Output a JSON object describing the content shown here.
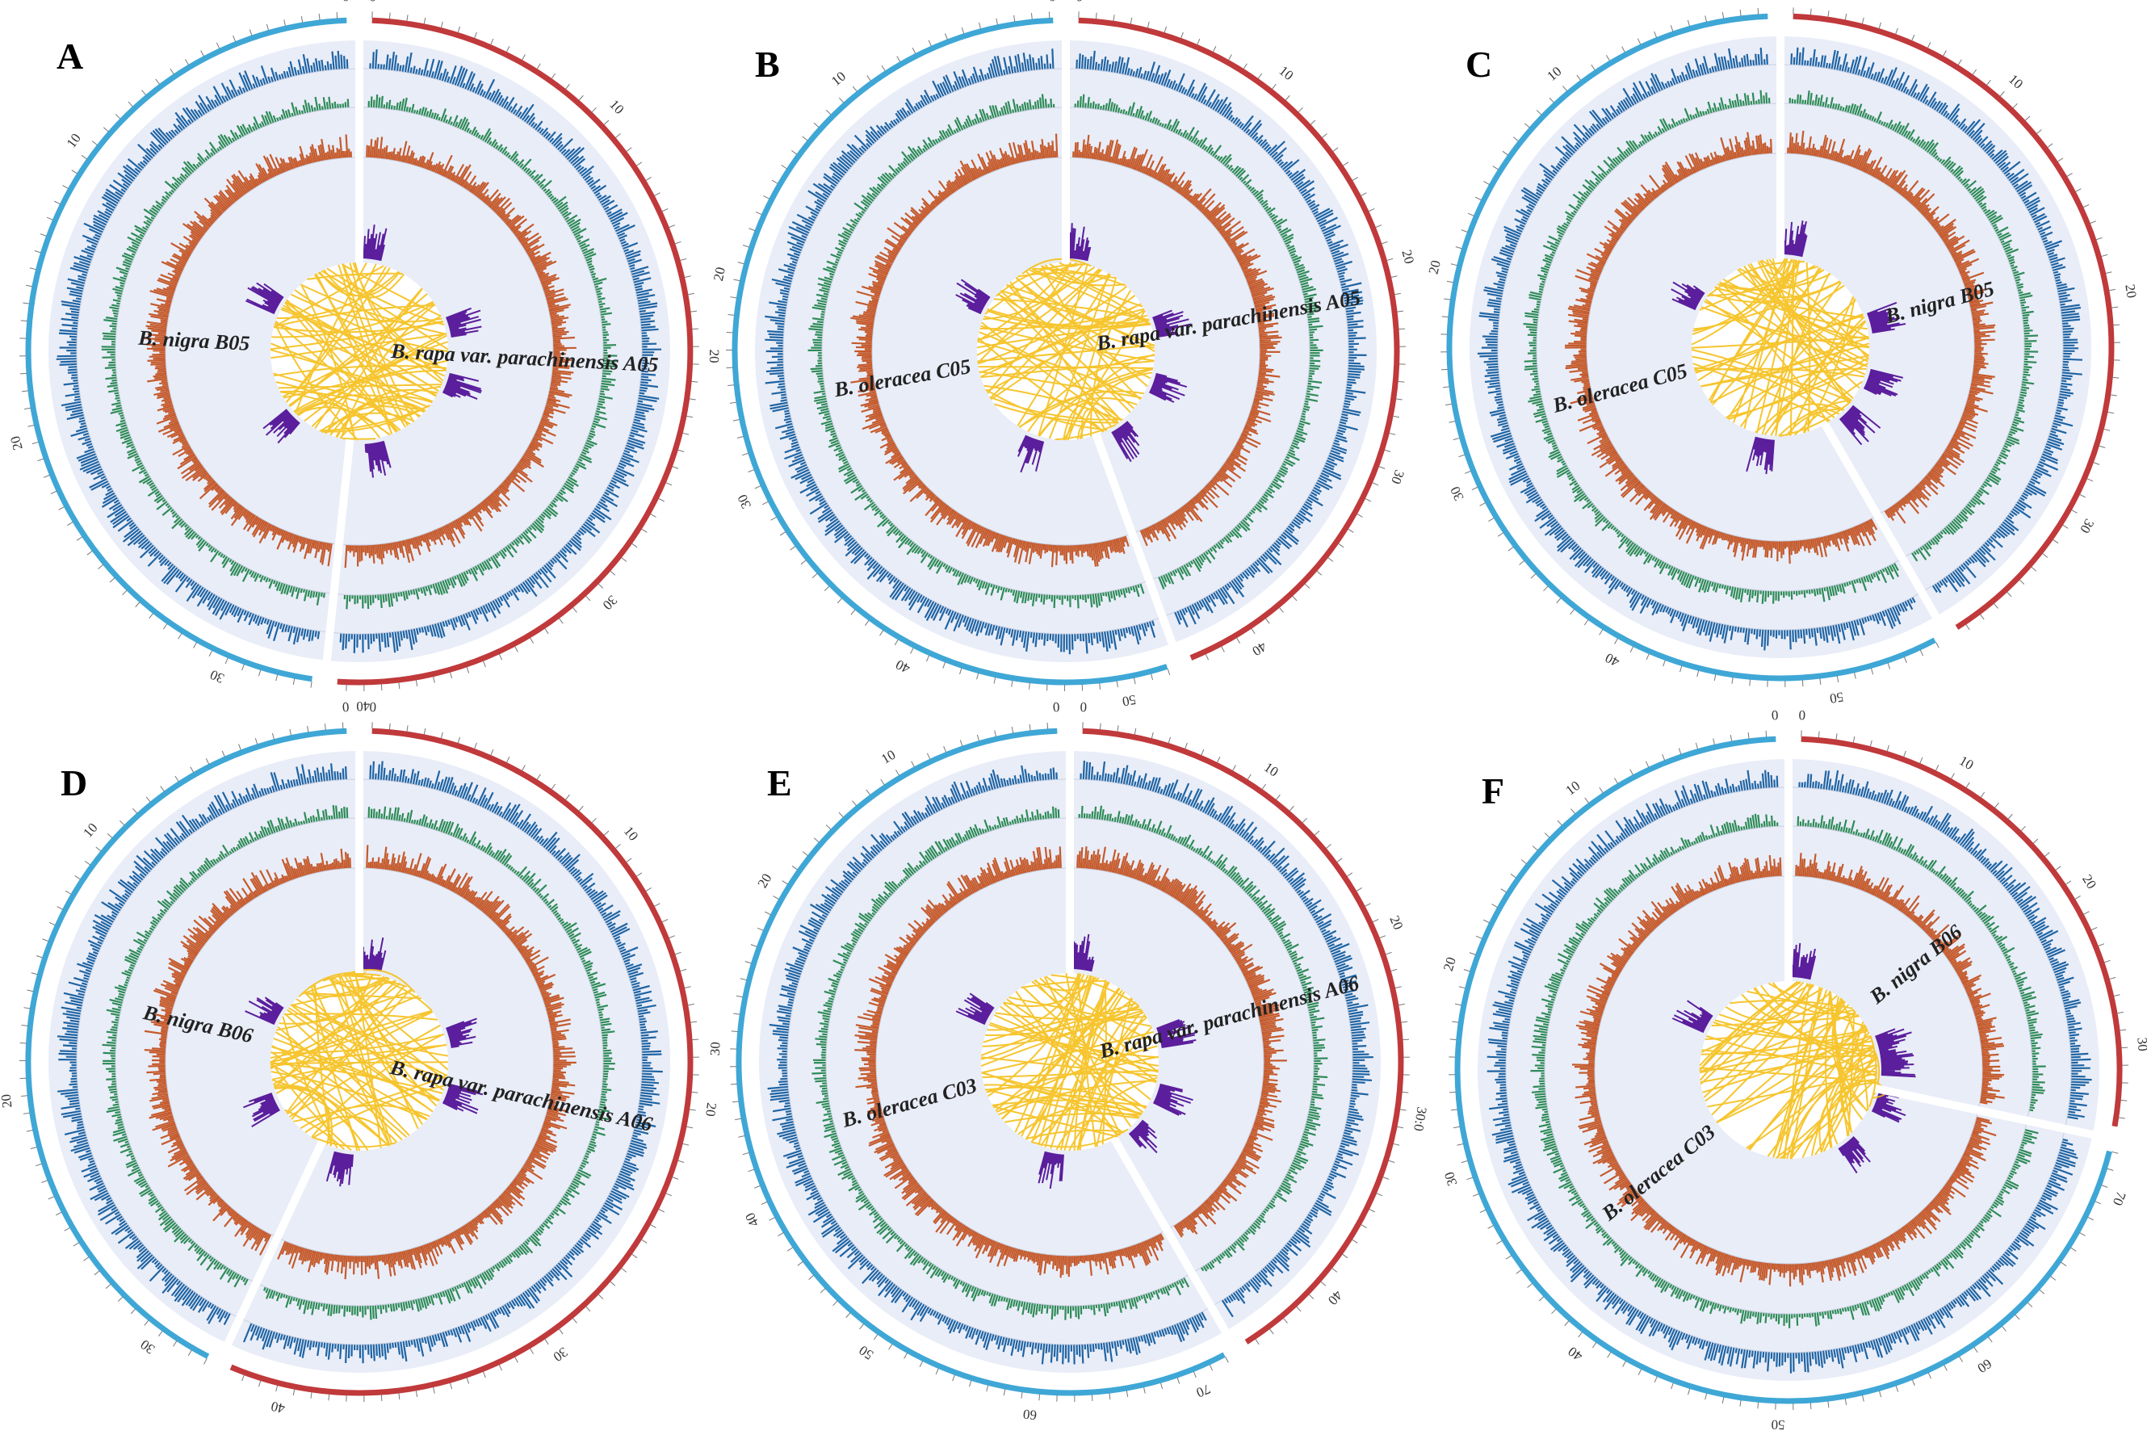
{
  "panels": [
    {
      "letter": "A",
      "left_label": "B. nigra B05",
      "right_label": "B. rapa var. parachinensis A05",
      "left_ticks": [
        "0",
        "10",
        "20",
        "30"
      ],
      "right_ticks": [
        "0",
        "10",
        "20",
        "30",
        "40"
      ],
      "left_max": 33,
      "right_max": 41,
      "gap_deg": 186
    },
    {
      "letter": "B",
      "left_label": "B. oleracea C05",
      "right_label": "B. rapa var. parachinensis A05",
      "left_ticks": [
        "0",
        "10",
        "20",
        "30",
        "40",
        "50"
      ],
      "right_ticks": [
        "0",
        "10",
        "20",
        "30",
        "40"
      ],
      "left_max": 52,
      "right_max": 43,
      "gap_deg": 160
    },
    {
      "letter": "C",
      "left_label": "B. oleracea C05",
      "right_label": "B. nigra B05",
      "left_ticks": [
        "0",
        "10",
        "20",
        "30",
        "40",
        "50"
      ],
      "right_ticks": [
        "0",
        "10",
        "20",
        "30"
      ],
      "left_max": 55,
      "right_max": 37,
      "gap_deg": 150
    },
    {
      "letter": "D",
      "left_label": "B. nigra B06",
      "right_label": "B. rapa var. parachinensis A06",
      "left_ticks": [
        "0",
        "10",
        "20",
        "30"
      ],
      "right_ticks": [
        "0",
        "10",
        "20",
        "30",
        "40"
      ],
      "left_max": 32,
      "right_max": 42,
      "gap_deg": 205
    },
    {
      "letter": "E",
      "left_label": "B. oleracea C03",
      "right_label": "B. rapa var. parachinensis A06",
      "left_ticks": [
        "0",
        "10",
        "20",
        "30",
        "40",
        "50",
        "60",
        "70"
      ],
      "right_ticks": [
        "0",
        "10",
        "20",
        "30:0",
        "40"
      ],
      "left_max": 72,
      "right_max": 45,
      "gap_deg": 150
    },
    {
      "letter": "F",
      "left_label": "B. oleracea C03",
      "right_label": "B. nigra B06",
      "left_ticks": [
        "0",
        "10",
        "20",
        "30",
        "40",
        "50",
        "60",
        "70"
      ],
      "right_ticks": [
        "0",
        "10",
        "20",
        "30"
      ],
      "left_max": 72,
      "right_max": 35,
      "gap_deg": 102
    }
  ],
  "colors": {
    "left_outer_arc": "#3fa7d6",
    "right_outer_arc": "#c0393b",
    "track_background": "#e9edf8",
    "track_blue": "#1f64a3",
    "track_green": "#2e8b57",
    "track_orange": "#c55a2c",
    "track_purple": "#5b1e9c",
    "synteny_links": "#f5bf18"
  }
}
